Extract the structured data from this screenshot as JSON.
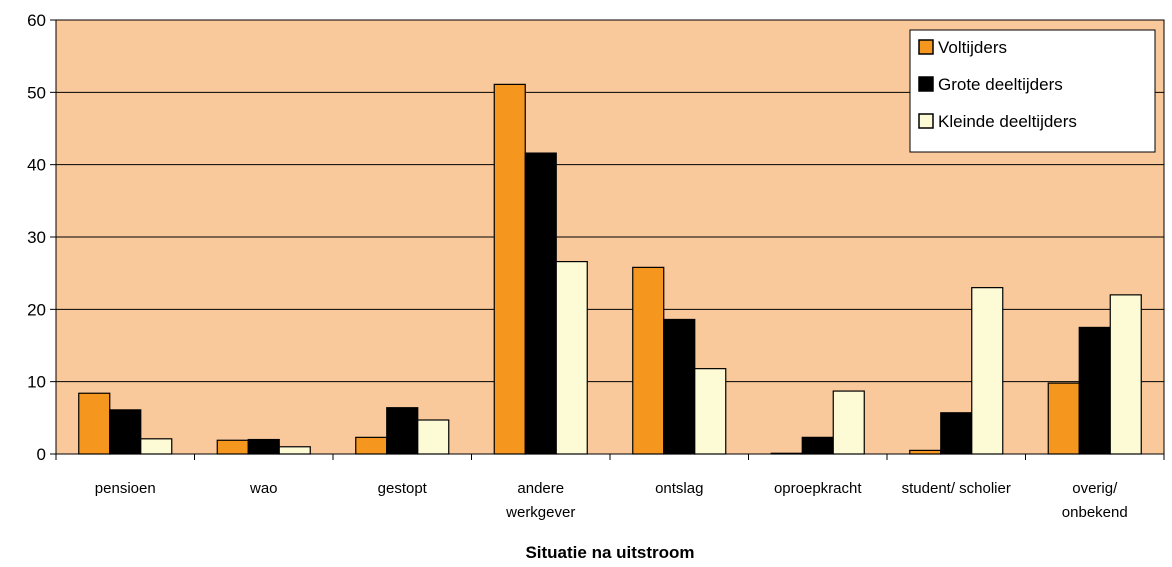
{
  "chart_data": {
    "type": "bar",
    "title": "",
    "xlabel": "Situatie na uitstroom",
    "ylabel": "",
    "ylim": [
      0,
      60
    ],
    "yticks": [
      0,
      10,
      20,
      30,
      40,
      50,
      60
    ],
    "grid": true,
    "legend_position": "top-right",
    "background_color": "#f9c99b",
    "categories": [
      [
        "pensioen"
      ],
      [
        "wao"
      ],
      [
        "gestopt"
      ],
      [
        "andere",
        "werkgever"
      ],
      [
        "ontslag"
      ],
      [
        "oproepkracht"
      ],
      [
        "student/ scholier"
      ],
      [
        "overig/",
        "onbekend"
      ]
    ],
    "series": [
      {
        "name": "Voltijders",
        "color": "#f5961e",
        "values": [
          8.4,
          1.9,
          2.3,
          51.1,
          25.8,
          0.1,
          0.5,
          9.8
        ]
      },
      {
        "name": "Grote deeltijders",
        "color": "#000000",
        "values": [
          6.1,
          2.0,
          6.4,
          41.6,
          18.6,
          2.3,
          5.7,
          17.5
        ]
      },
      {
        "name": "Kleinde deeltijders",
        "color": "#fdfad6",
        "values": [
          2.1,
          1.0,
          4.7,
          26.6,
          11.8,
          8.7,
          23.0,
          22.0
        ]
      }
    ]
  }
}
